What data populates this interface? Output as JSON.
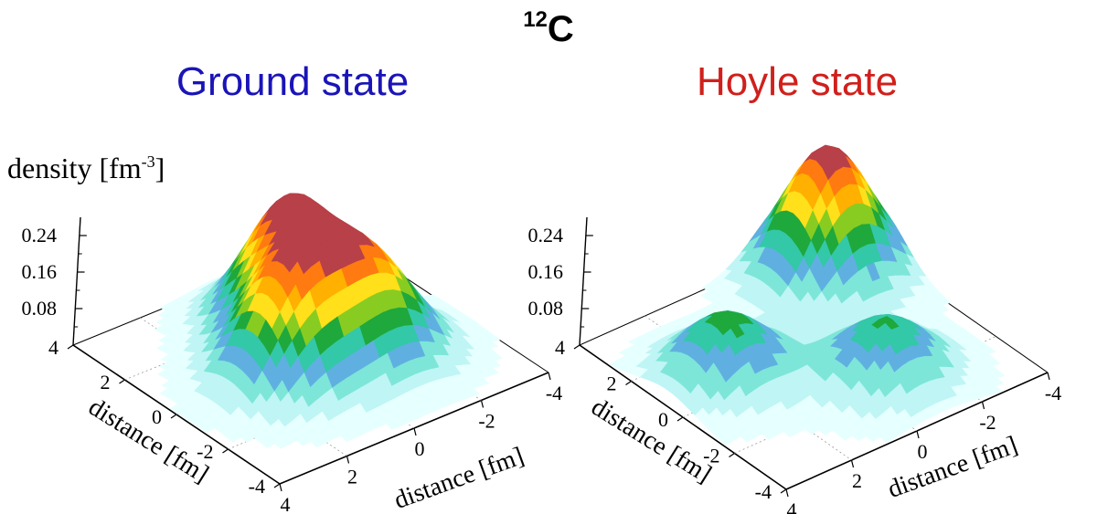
{
  "title": {
    "base": "C",
    "superscript": "12"
  },
  "z_label": {
    "prefix": "density [fm",
    "exponent": "-3",
    "suffix": "]"
  },
  "colors": {
    "ground_title": "#1a14b8",
    "hoyle_title": "#d0201c",
    "colormap": [
      "#e6ffff",
      "#bff5f5",
      "#7de6d8",
      "#5fb0e0",
      "#33c8a8",
      "#1fa83c",
      "#88cc22",
      "#ffe01a",
      "#ffb000",
      "#ff7a10",
      "#b84048"
    ]
  },
  "chart_data": [
    {
      "type": "surface",
      "title": "Ground state",
      "zlabel": "density [fm-3]",
      "xlabel": "distance [fm]",
      "ylabel": "distance [fm]",
      "xlim": [
        -4,
        4
      ],
      "ylim": [
        -4,
        4
      ],
      "zlim": [
        0,
        0.28
      ],
      "z_ticks": [
        "0.08",
        "0.16",
        "0.24"
      ],
      "x_ticks": [
        "4",
        "2",
        "0",
        "-2",
        "-4"
      ],
      "y_ticks": [
        "4",
        "2",
        "0",
        "-2",
        "-4"
      ],
      "peaks": [
        {
          "x": -0.5,
          "y": 1.5,
          "height": 0.26
        },
        {
          "x": 1.0,
          "y": -0.5,
          "height": 0.23
        },
        {
          "x": -1.2,
          "y": -0.9,
          "height": 0.2
        }
      ]
    },
    {
      "type": "surface",
      "title": "Hoyle state",
      "zlabel": "density [fm-3]",
      "xlabel": "distance [fm]",
      "ylabel": "distance [fm]",
      "xlim": [
        -4,
        4
      ],
      "ylim": [
        -4,
        4
      ],
      "zlim": [
        0,
        0.28
      ],
      "z_ticks": [
        "0.08",
        "0.16",
        "0.24"
      ],
      "x_ticks": [
        "4",
        "2",
        "0",
        "-2",
        "-4"
      ],
      "y_ticks": [
        "4",
        "2",
        "0",
        "-2",
        "-4"
      ],
      "peaks": [
        {
          "x": -2.5,
          "y": 2.6,
          "height": 0.28
        },
        {
          "x": 2.2,
          "y": 0.6,
          "height": 0.14
        },
        {
          "x": -0.8,
          "y": -1.8,
          "height": 0.13
        }
      ]
    }
  ]
}
